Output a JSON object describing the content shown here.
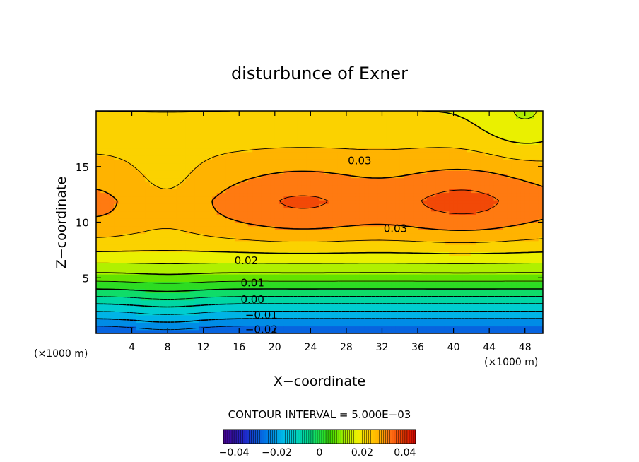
{
  "chart_data": {
    "type": "heatmap",
    "title": "disturbunce of Exner",
    "xlabel": "X−coordinate",
    "ylabel": "Z−coordinate",
    "x_unit_left": "(×1000 m)",
    "x_unit_right": "(×1000 m)",
    "xlim": [
      0,
      50
    ],
    "ylim": [
      0,
      20
    ],
    "x_ticks": [
      4,
      8,
      12,
      16,
      20,
      24,
      28,
      32,
      36,
      40,
      44,
      48
    ],
    "x_tick_labels": [
      "4",
      "8",
      "12",
      "16",
      "20",
      "24",
      "28",
      "32",
      "36",
      "40",
      "44",
      "48"
    ],
    "y_ticks": [
      5,
      10,
      15
    ],
    "y_tick_labels": [
      "5",
      "10",
      "15"
    ],
    "contour_labels": [
      {
        "text": "0.03",
        "x": 29.5,
        "z": 15.6
      },
      {
        "text": "0.03",
        "x": 33.5,
        "z": 9.5
      },
      {
        "text": "0.02",
        "x": 16.8,
        "z": 6.6
      },
      {
        "text": "0.01",
        "x": 17.5,
        "z": 4.6
      },
      {
        "text": "0.00",
        "x": 17.5,
        "z": 3.1
      },
      {
        "text": "−0.01",
        "x": 18.5,
        "z": 1.7
      },
      {
        "text": "−0.02",
        "x": 18.5,
        "z": 0.4
      }
    ],
    "field": {
      "min": -0.045,
      "max": 0.045,
      "upper_maxima": [
        {
          "x": 23,
          "z": 12,
          "value": 0.0355
        },
        {
          "x": 41,
          "z": 12,
          "value": 0.0365
        }
      ],
      "left_edge_value_at_z12": 0.0315,
      "minimum": {
        "x": 8,
        "z": 0,
        "value": -0.03
      }
    },
    "contour_interval_text": "CONTOUR INTERVAL = 5.000E−03",
    "colorbar": {
      "range": [
        -0.045,
        0.045
      ],
      "ticks": [
        -0.04,
        -0.02,
        0,
        0.02,
        0.04
      ],
      "tick_labels": [
        "−0.04",
        "−0.02",
        "0",
        "0.02",
        "0.04"
      ]
    },
    "grid": false
  }
}
